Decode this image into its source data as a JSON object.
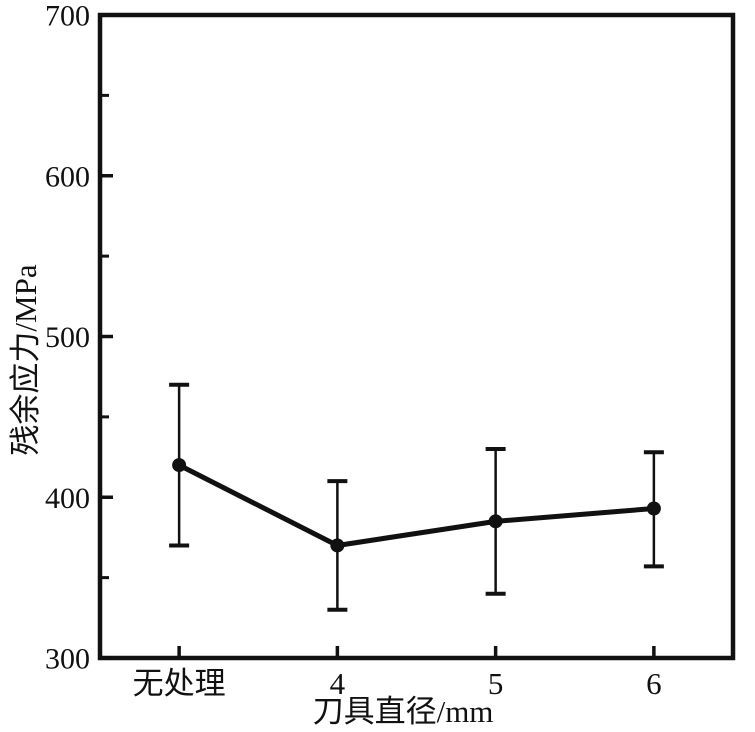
{
  "figure": {
    "background_color": "#ffffff",
    "foreground_color": "#111111"
  },
  "chart_data": {
    "type": "line",
    "title": "",
    "categories": [
      "无处理",
      "4",
      "5",
      "6"
    ],
    "series": [
      {
        "name": "残余应力",
        "values": [
          420,
          370,
          385,
          393
        ],
        "error_upper": [
          470,
          410,
          430,
          428
        ],
        "error_lower": [
          370,
          330,
          340,
          357
        ]
      }
    ],
    "xlabel": "刀具直径/mm",
    "ylabel": "残余应力/MPa",
    "ylim": [
      300,
      700
    ],
    "y_major_ticks": [
      300,
      400,
      500,
      600,
      700
    ],
    "y_minor_ticks": [
      350,
      450,
      550,
      650
    ],
    "grid": false,
    "legend": "none",
    "marker": "circle",
    "line_color": "#111111"
  }
}
